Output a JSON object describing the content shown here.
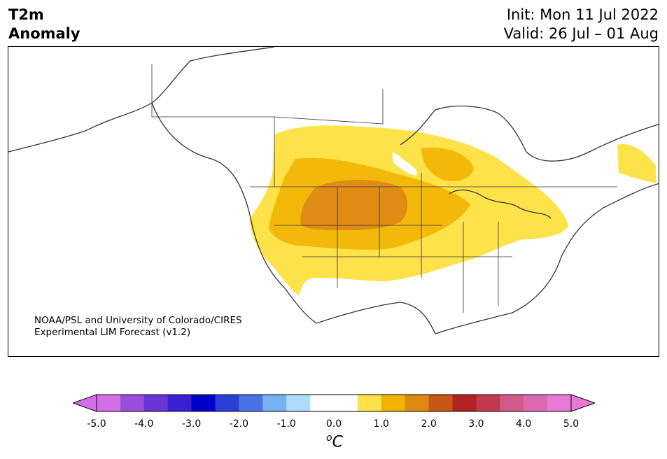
{
  "title": {
    "line1": "T2m",
    "line2": "Anomaly"
  },
  "info": {
    "init": "Init: Mon 11 Jul 2022",
    "valid": "Valid: 26 Jul – 01 Aug"
  },
  "credit": {
    "line1": "NOAA/PSL and University of Colorado/CIRES",
    "line2": "Experimental LIM Forecast (v1.2)"
  },
  "colorbar": {
    "unit_base": "C",
    "unit_sup": "o",
    "ticks": [
      "-5.0",
      "-4.0",
      "-3.0",
      "-2.0",
      "-1.0",
      "0.0",
      "1.0",
      "2.0",
      "3.0",
      "4.0",
      "5.0"
    ],
    "colors": [
      "#d26ee8",
      "#9a4fdc",
      "#6a35d6",
      "#3a1fd2",
      "#0000cc",
      "#2a3fd8",
      "#4a72e6",
      "#78b0f0",
      "#aedcf8",
      "#ffffff",
      "#ffffff",
      "#fde24a",
      "#f0b400",
      "#dc8a10",
      "#c85614",
      "#b22222",
      "#c23a50",
      "#d05a88",
      "#dc68b0",
      "#e87ad6"
    ],
    "under_color": "#d26ee8",
    "over_color": "#e87ad6"
  },
  "map": {
    "colors": {
      "land_outline": "#333333",
      "anom_0_5_1_0": "#fde24a",
      "anom_1_0_1_5": "#f3b90a",
      "anom_1_5_2_0": "#e08c14"
    }
  }
}
